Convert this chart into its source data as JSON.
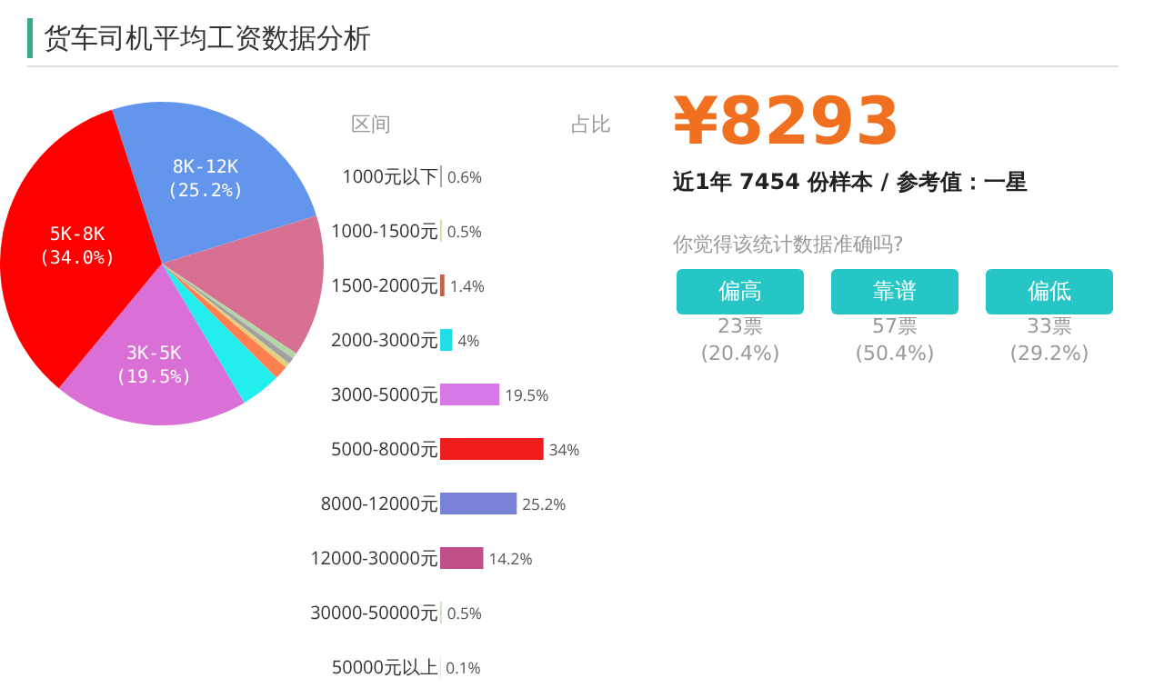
{
  "chart_data": [
    {
      "type": "pie",
      "title": "货车司机平均工资数据分析",
      "categories": [
        "8K-12K",
        null,
        null,
        null,
        null,
        null,
        null,
        null,
        "3K-5K",
        "5K-8K"
      ],
      "values": [
        25.2,
        14.2,
        0.5,
        0.1,
        0.6,
        0.5,
        1.4,
        4,
        19.5,
        34
      ],
      "value_labels": [
        "(25.2%)",
        null,
        null,
        null,
        null,
        null,
        null,
        null,
        "(19.5%)",
        "(34.0%)"
      ],
      "colors": [
        "#6495ed",
        "#d87093",
        "#b0d8a0",
        "#b0b0b0",
        "#a0a0a0",
        "#e0d080",
        "#ff7f50",
        "#22eeee",
        "#da70d6",
        "#ff0000"
      ]
    },
    {
      "type": "bar",
      "orientation": "horizontal",
      "annotations": [
        "区间",
        "占比"
      ],
      "categories": [
        "1000元以下",
        "1000-1500元",
        "1500-2000元",
        "2000-3000元",
        "3000-5000元",
        "5000-8000元",
        "8000-12000元",
        "12000-30000元",
        "30000-50000元",
        "50000元以上"
      ],
      "values": [
        0.6,
        0.5,
        1.4,
        4,
        19.5,
        34,
        25.2,
        14.2,
        0.5,
        0.1
      ],
      "value_labels": [
        "0.6%",
        "0.5%",
        "1.4%",
        "4%",
        "19.5%",
        "34%",
        "25.2%",
        "14.2%",
        "0.5%",
        "0.1%"
      ],
      "colors": [
        "#a8a8a8",
        "#d8d0a0",
        "#c06050",
        "#22dde8",
        "#d878e8",
        "#ee1c1c",
        "#7880d8",
        "#c0508a",
        "#c8e0c0",
        "#b8b8b8"
      ]
    },
    {
      "type": "other",
      "title": "¥8293",
      "subtitle": "近1年 7454 份样本 / 参考值：一星",
      "annotations": [
        "你觉得该统计数据准确吗?",
        "偏高",
        "23票",
        "(20.4%)",
        "靠谱",
        "57票",
        "(50.4%)",
        "偏低",
        "33票",
        "(29.2%)"
      ]
    }
  ]
}
